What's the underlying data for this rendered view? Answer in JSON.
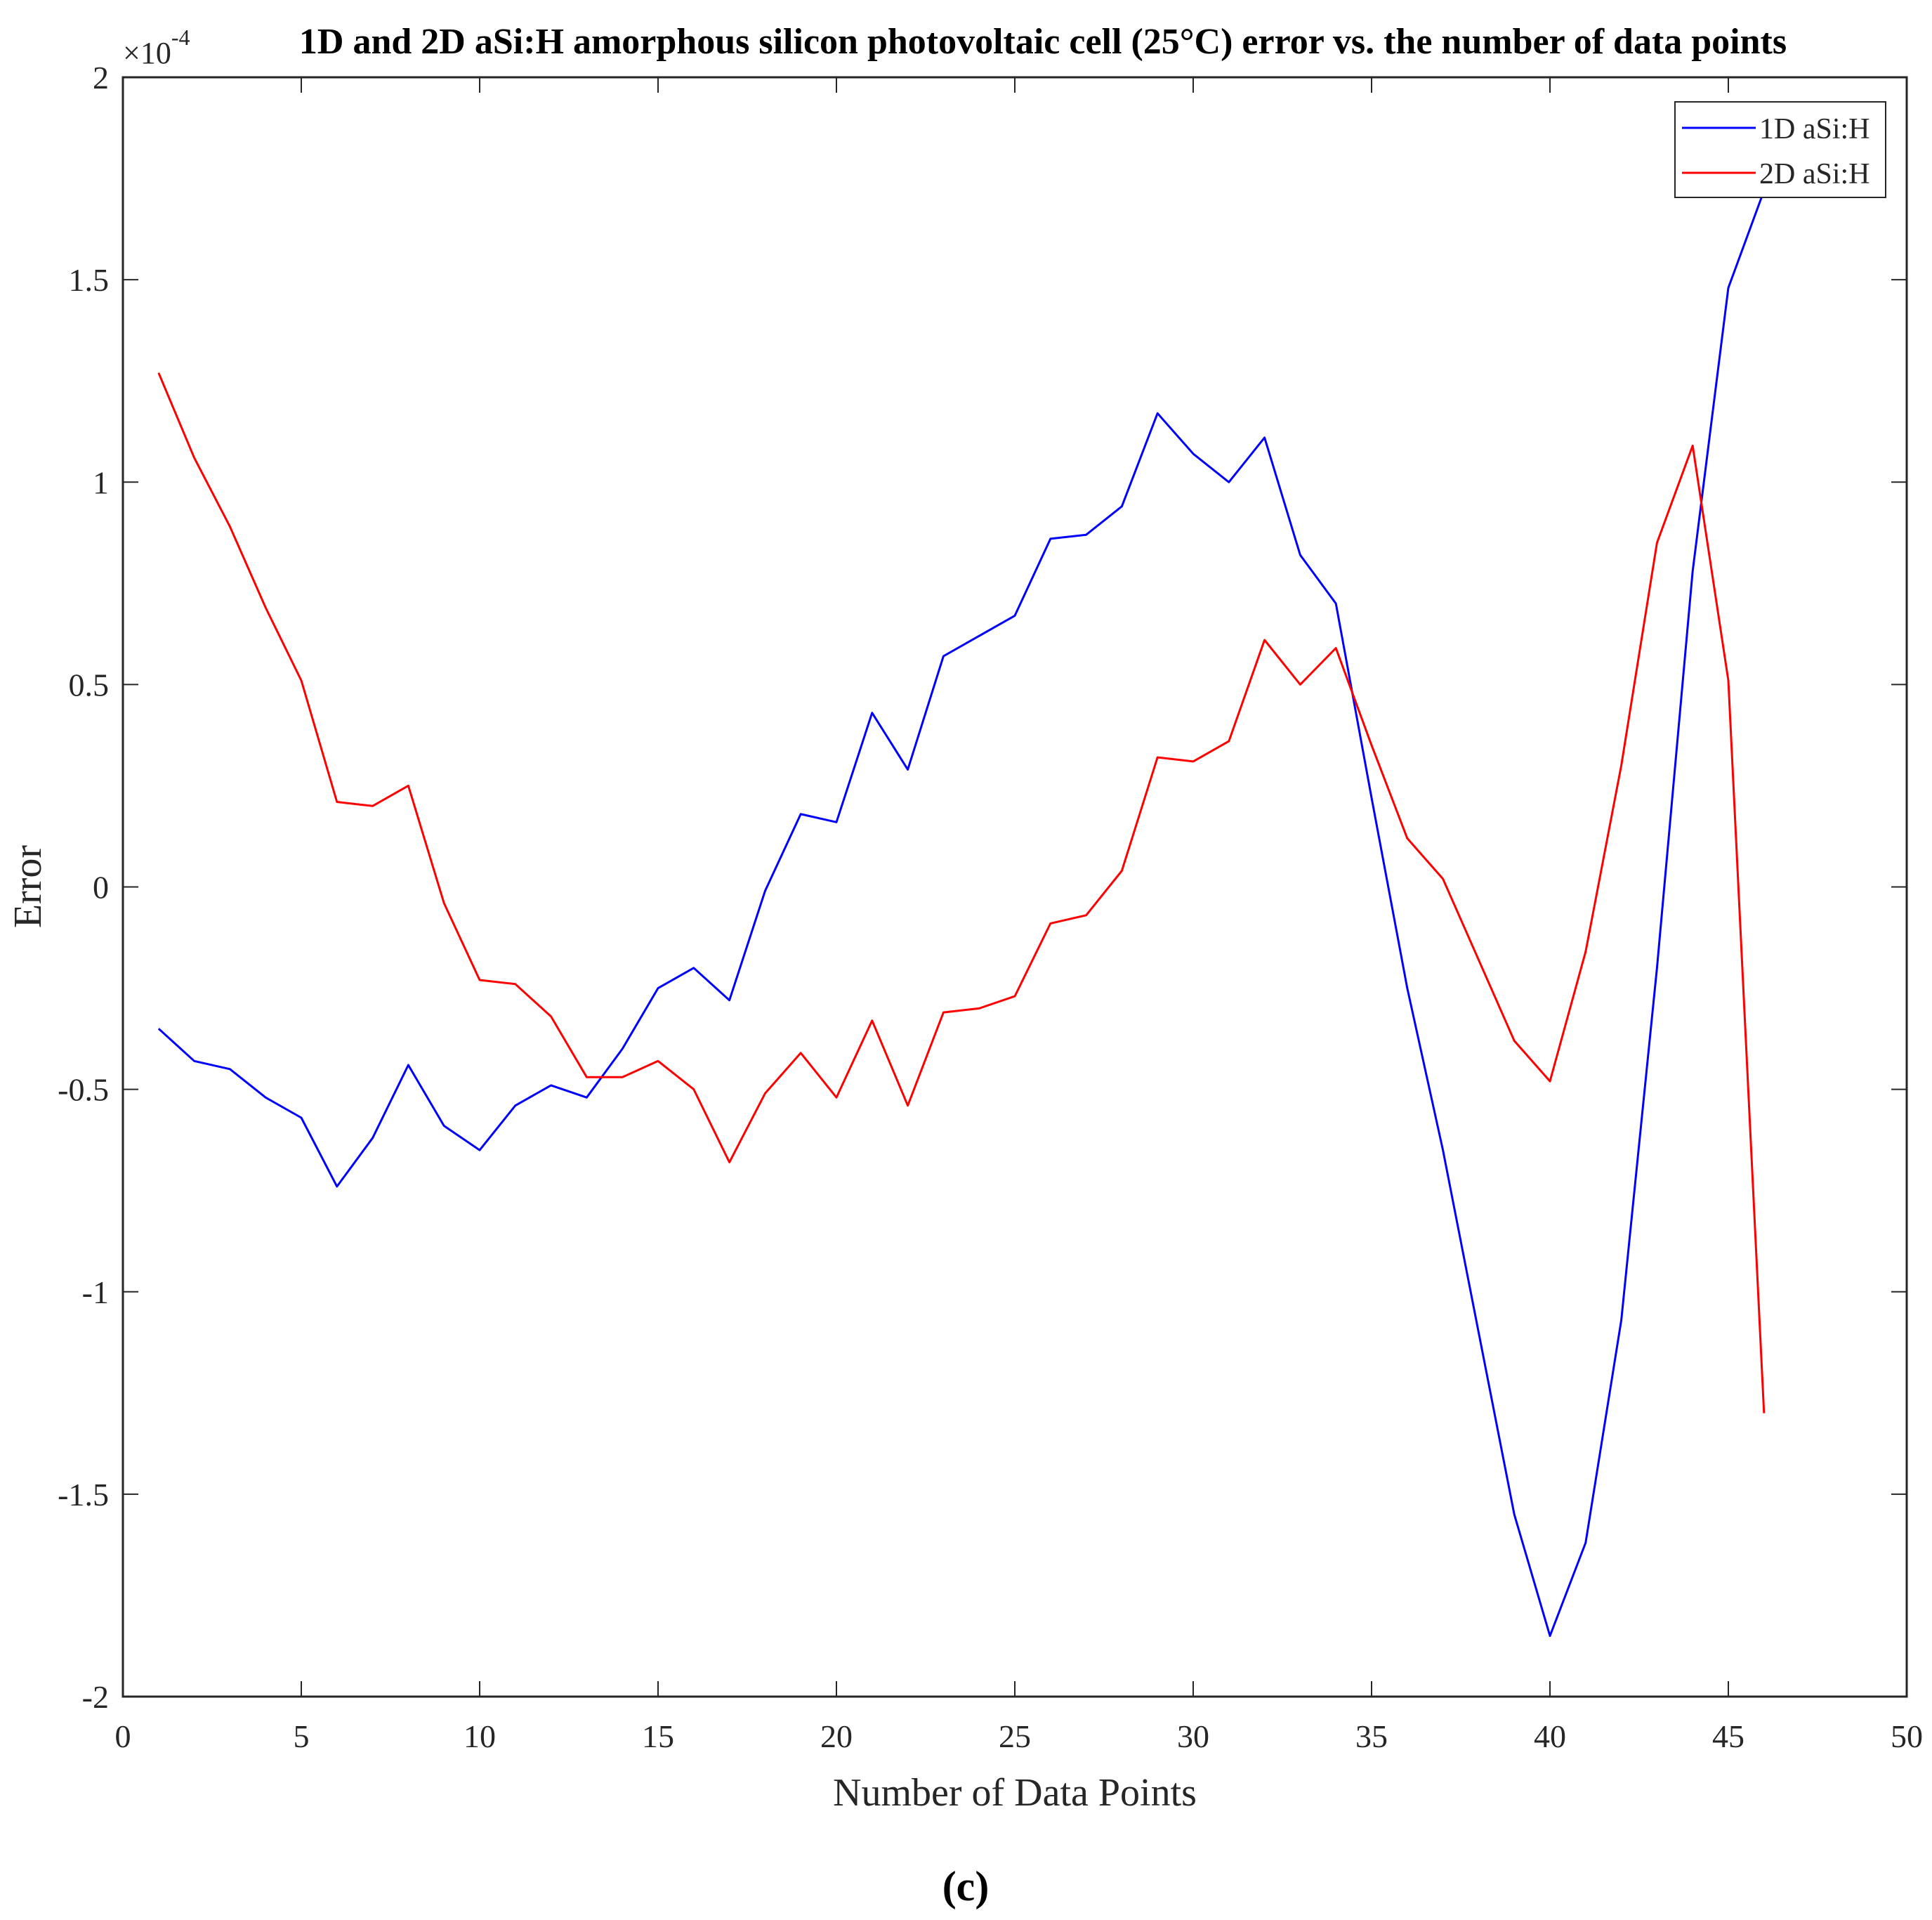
{
  "caption": "(c)",
  "chart_data": {
    "type": "line",
    "title": "1D and 2D aSi:H amorphous silicon photovoltaic cell (25°C) error vs. the number of data points",
    "xlabel": "Number of Data Points",
    "ylabel": "Error",
    "y_exponent": "×10-4",
    "y_exponent_base": "×10",
    "y_exponent_power": "-4",
    "xlim": [
      0,
      50
    ],
    "ylim": [
      -2,
      2
    ],
    "x_ticks": [
      0,
      5,
      10,
      15,
      20,
      25,
      30,
      35,
      40,
      45,
      50
    ],
    "y_ticks": [
      -2,
      -1.5,
      -1,
      -0.5,
      0,
      0.5,
      1,
      1.5,
      2
    ],
    "x_tick_labels": [
      "0",
      "5",
      "10",
      "15",
      "20",
      "25",
      "30",
      "35",
      "40",
      "45",
      "50"
    ],
    "y_tick_labels": [
      "-2",
      "-1.5",
      "-1",
      "-0.5",
      "0",
      "0.5",
      "1",
      "1.5",
      "2"
    ],
    "grid": false,
    "legend_position": "top-right",
    "x": [
      1,
      2,
      3,
      4,
      5,
      6,
      7,
      8,
      9,
      10,
      11,
      12,
      13,
      14,
      15,
      16,
      17,
      18,
      19,
      20,
      21,
      22,
      23,
      24,
      25,
      26,
      27,
      28,
      29,
      30,
      31,
      32,
      33,
      34,
      35,
      36,
      37,
      38,
      39,
      40,
      41,
      42,
      43,
      44,
      45,
      46
    ],
    "series": [
      {
        "name": "1D aSi:H",
        "color": "#0000ff",
        "values": [
          -0.35,
          -0.43,
          -0.45,
          -0.52,
          -0.57,
          -0.74,
          -0.62,
          -0.44,
          -0.59,
          -0.65,
          -0.54,
          -0.49,
          -0.52,
          -0.4,
          -0.25,
          -0.2,
          -0.28,
          -0.01,
          0.18,
          0.16,
          0.43,
          0.29,
          0.57,
          0.62,
          0.67,
          0.86,
          0.87,
          0.94,
          1.17,
          1.07,
          1.0,
          1.11,
          0.82,
          0.7,
          0.22,
          -0.25,
          -0.65,
          -1.1,
          -1.55,
          -1.85,
          -1.62,
          -1.07,
          -0.2,
          0.78,
          1.48,
          1.72
        ]
      },
      {
        "name": "2D aSi:H",
        "color": "#ff0000",
        "values": [
          1.27,
          1.06,
          0.89,
          0.69,
          0.51,
          0.21,
          0.2,
          0.25,
          -0.04,
          -0.23,
          -0.24,
          -0.32,
          -0.47,
          -0.47,
          -0.43,
          -0.5,
          -0.68,
          -0.51,
          -0.41,
          -0.52,
          -0.33,
          -0.54,
          -0.31,
          -0.3,
          -0.27,
          -0.09,
          -0.07,
          0.04,
          0.32,
          0.31,
          0.36,
          0.61,
          0.5,
          0.59,
          0.35,
          0.12,
          0.02,
          -0.18,
          -0.38,
          -0.48,
          -0.16,
          0.3,
          0.85,
          1.09,
          0.51,
          -1.3
        ]
      }
    ]
  }
}
